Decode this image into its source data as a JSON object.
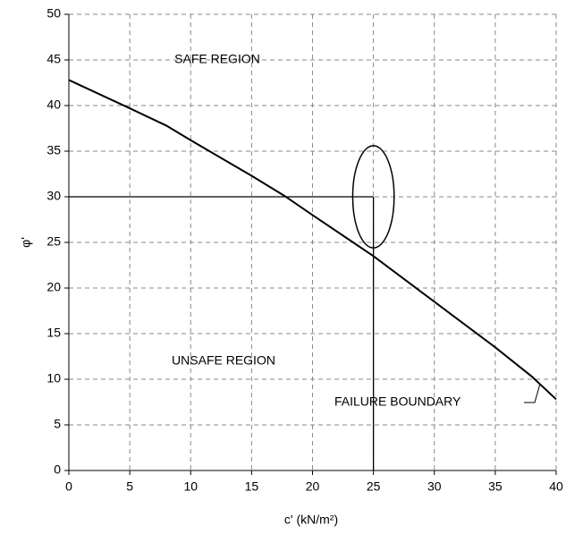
{
  "chart_data": {
    "type": "line",
    "x_label": "c' (kN/m²)",
    "y_label": "φ'",
    "x": [
      0,
      5,
      8,
      10,
      15,
      17.7,
      20,
      25,
      30,
      35,
      38,
      40
    ],
    "series": [
      {
        "name": "FAILURE BOUNDARY",
        "color": "#000000",
        "values": [
          42.8,
          39.7,
          37.8,
          36.2,
          32.3,
          30.1,
          28.0,
          23.5,
          18.5,
          13.5,
          10.3,
          7.8
        ]
      }
    ],
    "reference_point": {
      "x": 25,
      "y": 30
    },
    "ellipse": {
      "cx": 25,
      "cy": 30,
      "rx": 1.7,
      "ry": 5.6
    },
    "annotations": [
      "SAFE REGION",
      "UNSAFE REGION",
      "FAILURE BOUNDARY"
    ],
    "xlim": [
      0,
      40
    ],
    "xticks": [
      0,
      5,
      10,
      15,
      20,
      25,
      30,
      35,
      40
    ],
    "ylim": [
      0,
      50
    ],
    "yticks": [
      0,
      5,
      10,
      15,
      20,
      25,
      30,
      35,
      40,
      45,
      50
    ],
    "grid": true
  }
}
